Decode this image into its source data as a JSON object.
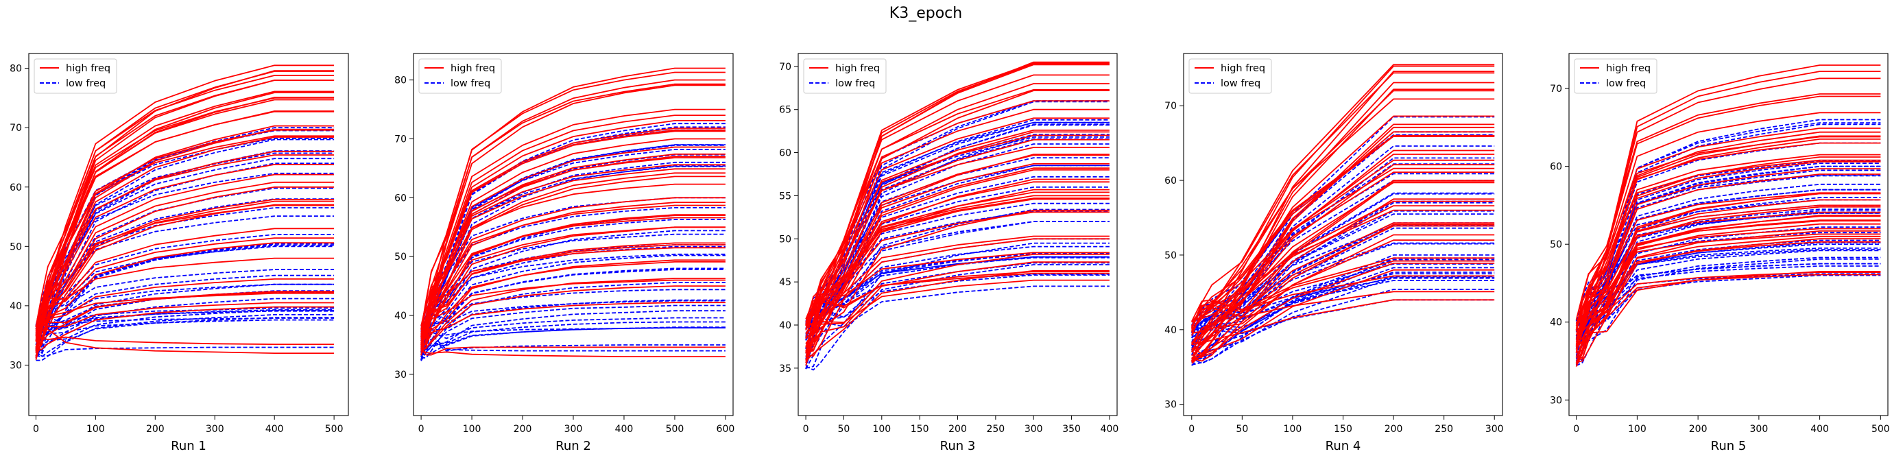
{
  "figure": {
    "title": "K3_epoch"
  },
  "colors": {
    "high": "#ff0000",
    "low": "#0000ff"
  },
  "chart_data": [
    {
      "type": "line",
      "xlabel": "Run 1",
      "xlim": [
        -12,
        524
      ],
      "ylim": [
        21.5,
        82.5
      ],
      "xticks": [
        0,
        100,
        200,
        300,
        400,
        500
      ],
      "yticks": [
        30,
        40,
        50,
        60,
        70,
        80
      ],
      "x": [
        0,
        10,
        20,
        50,
        100,
        200,
        300,
        400,
        500
      ],
      "legend": {
        "position": "upper left",
        "entries": [
          {
            "label": "high freq",
            "style": "solid",
            "color": "#ff0000"
          },
          {
            "label": "low freq",
            "style": "dashed",
            "color": "#0000ff"
          }
        ]
      },
      "summary": {
        "high_count": 40,
        "low_count": 36,
        "high_end_range": [
          33,
          80.5
        ],
        "low_end_range": [
          36.5,
          72
        ],
        "high_highlight": [
          32,
          48,
          57,
          60,
          66,
          75,
          78,
          79.5,
          80.5
        ],
        "low_highlight": [
          33,
          38,
          50,
          52,
          58,
          64,
          66,
          68,
          70
        ]
      }
    },
    {
      "type": "line",
      "xlabel": "Run 2",
      "xlim": [
        -15,
        615
      ],
      "ylim": [
        23,
        84.5
      ],
      "xticks": [
        0,
        100,
        200,
        300,
        400,
        500,
        600
      ],
      "yticks": [
        30,
        40,
        50,
        60,
        70,
        80
      ],
      "x": [
        0,
        10,
        20,
        50,
        100,
        200,
        300,
        400,
        500,
        600
      ],
      "legend": {
        "position": "upper left",
        "entries": [
          {
            "label": "high freq",
            "style": "solid",
            "color": "#ff0000"
          },
          {
            "label": "low freq",
            "style": "dashed",
            "color": "#0000ff"
          }
        ]
      },
      "summary": {
        "high_count": 40,
        "low_count": 36,
        "high_end_range": [
          33.5,
          82
        ],
        "low_end_range": [
          35,
          73
        ],
        "high_highlight": [
          33,
          45,
          52,
          55,
          60,
          70,
          75,
          80,
          82
        ],
        "low_highlight": [
          34,
          38,
          48,
          52,
          57,
          60,
          66,
          69,
          72
        ]
      }
    },
    {
      "type": "line",
      "xlabel": "Run 3",
      "xlim": [
        -10,
        410
      ],
      "ylim": [
        29.5,
        71.5
      ],
      "xticks": [
        0,
        50,
        100,
        150,
        200,
        250,
        300,
        350,
        400
      ],
      "yticks": [
        35,
        40,
        45,
        50,
        55,
        60,
        65,
        70
      ],
      "x": [
        0,
        10,
        20,
        50,
        100,
        200,
        300,
        400
      ],
      "legend": {
        "position": "upper left",
        "entries": [
          {
            "label": "high freq",
            "style": "solid",
            "color": "#ff0000"
          },
          {
            "label": "low freq",
            "style": "dashed",
            "color": "#0000ff"
          }
        ]
      },
      "summary": {
        "high_count": 40,
        "low_count": 36,
        "high_end_range": [
          45,
          70.5
        ],
        "low_end_range": [
          44.5,
          67
        ],
        "high_highlight": [
          46,
          50,
          55,
          58,
          62,
          64,
          66,
          69,
          70.5
        ],
        "low_highlight": [
          44.5,
          47,
          50,
          52,
          56,
          58.5,
          61,
          63.5,
          66
        ]
      }
    },
    {
      "type": "line",
      "xlabel": "Run 4",
      "xlim": [
        -8,
        308
      ],
      "ylim": [
        28.5,
        77
      ],
      "xticks": [
        0,
        50,
        100,
        150,
        200,
        250,
        300
      ],
      "yticks": [
        30,
        40,
        50,
        60,
        70
      ],
      "x": [
        0,
        10,
        20,
        50,
        100,
        200,
        300
      ],
      "legend": {
        "position": "upper left",
        "entries": [
          {
            "label": "high freq",
            "style": "solid",
            "color": "#ff0000"
          },
          {
            "label": "low freq",
            "style": "dashed",
            "color": "#0000ff"
          }
        ]
      },
      "summary": {
        "high_count": 40,
        "low_count": 36,
        "high_end_range": [
          44,
          75.5
        ],
        "low_end_range": [
          44,
          69
        ],
        "high_highlight": [
          44,
          48,
          52,
          56,
          60,
          64,
          66,
          72,
          75.5
        ],
        "low_highlight": [
          44,
          47,
          50,
          54,
          57,
          60,
          63,
          66,
          68.5
        ]
      }
    },
    {
      "type": "line",
      "xlabel": "Run 5",
      "xlim": [
        -12,
        512
      ],
      "ylim": [
        28,
        74.5
      ],
      "xticks": [
        0,
        100,
        200,
        300,
        400,
        500
      ],
      "yticks": [
        30,
        40,
        50,
        60,
        70
      ],
      "x": [
        0,
        10,
        20,
        50,
        100,
        200,
        300,
        400,
        500
      ],
      "legend": {
        "position": "upper left",
        "entries": [
          {
            "label": "high freq",
            "style": "solid",
            "color": "#ff0000"
          },
          {
            "label": "low freq",
            "style": "dashed",
            "color": "#0000ff"
          }
        ]
      },
      "summary": {
        "high_count": 40,
        "low_count": 36,
        "high_end_range": [
          46,
          73
        ],
        "low_end_range": [
          46,
          67
        ],
        "high_highlight": [
          46.5,
          51,
          53,
          55,
          59,
          61.5,
          63,
          69,
          73
        ],
        "low_highlight": [
          46,
          47.5,
          50,
          54,
          55,
          57,
          60,
          63,
          66
        ]
      }
    }
  ]
}
